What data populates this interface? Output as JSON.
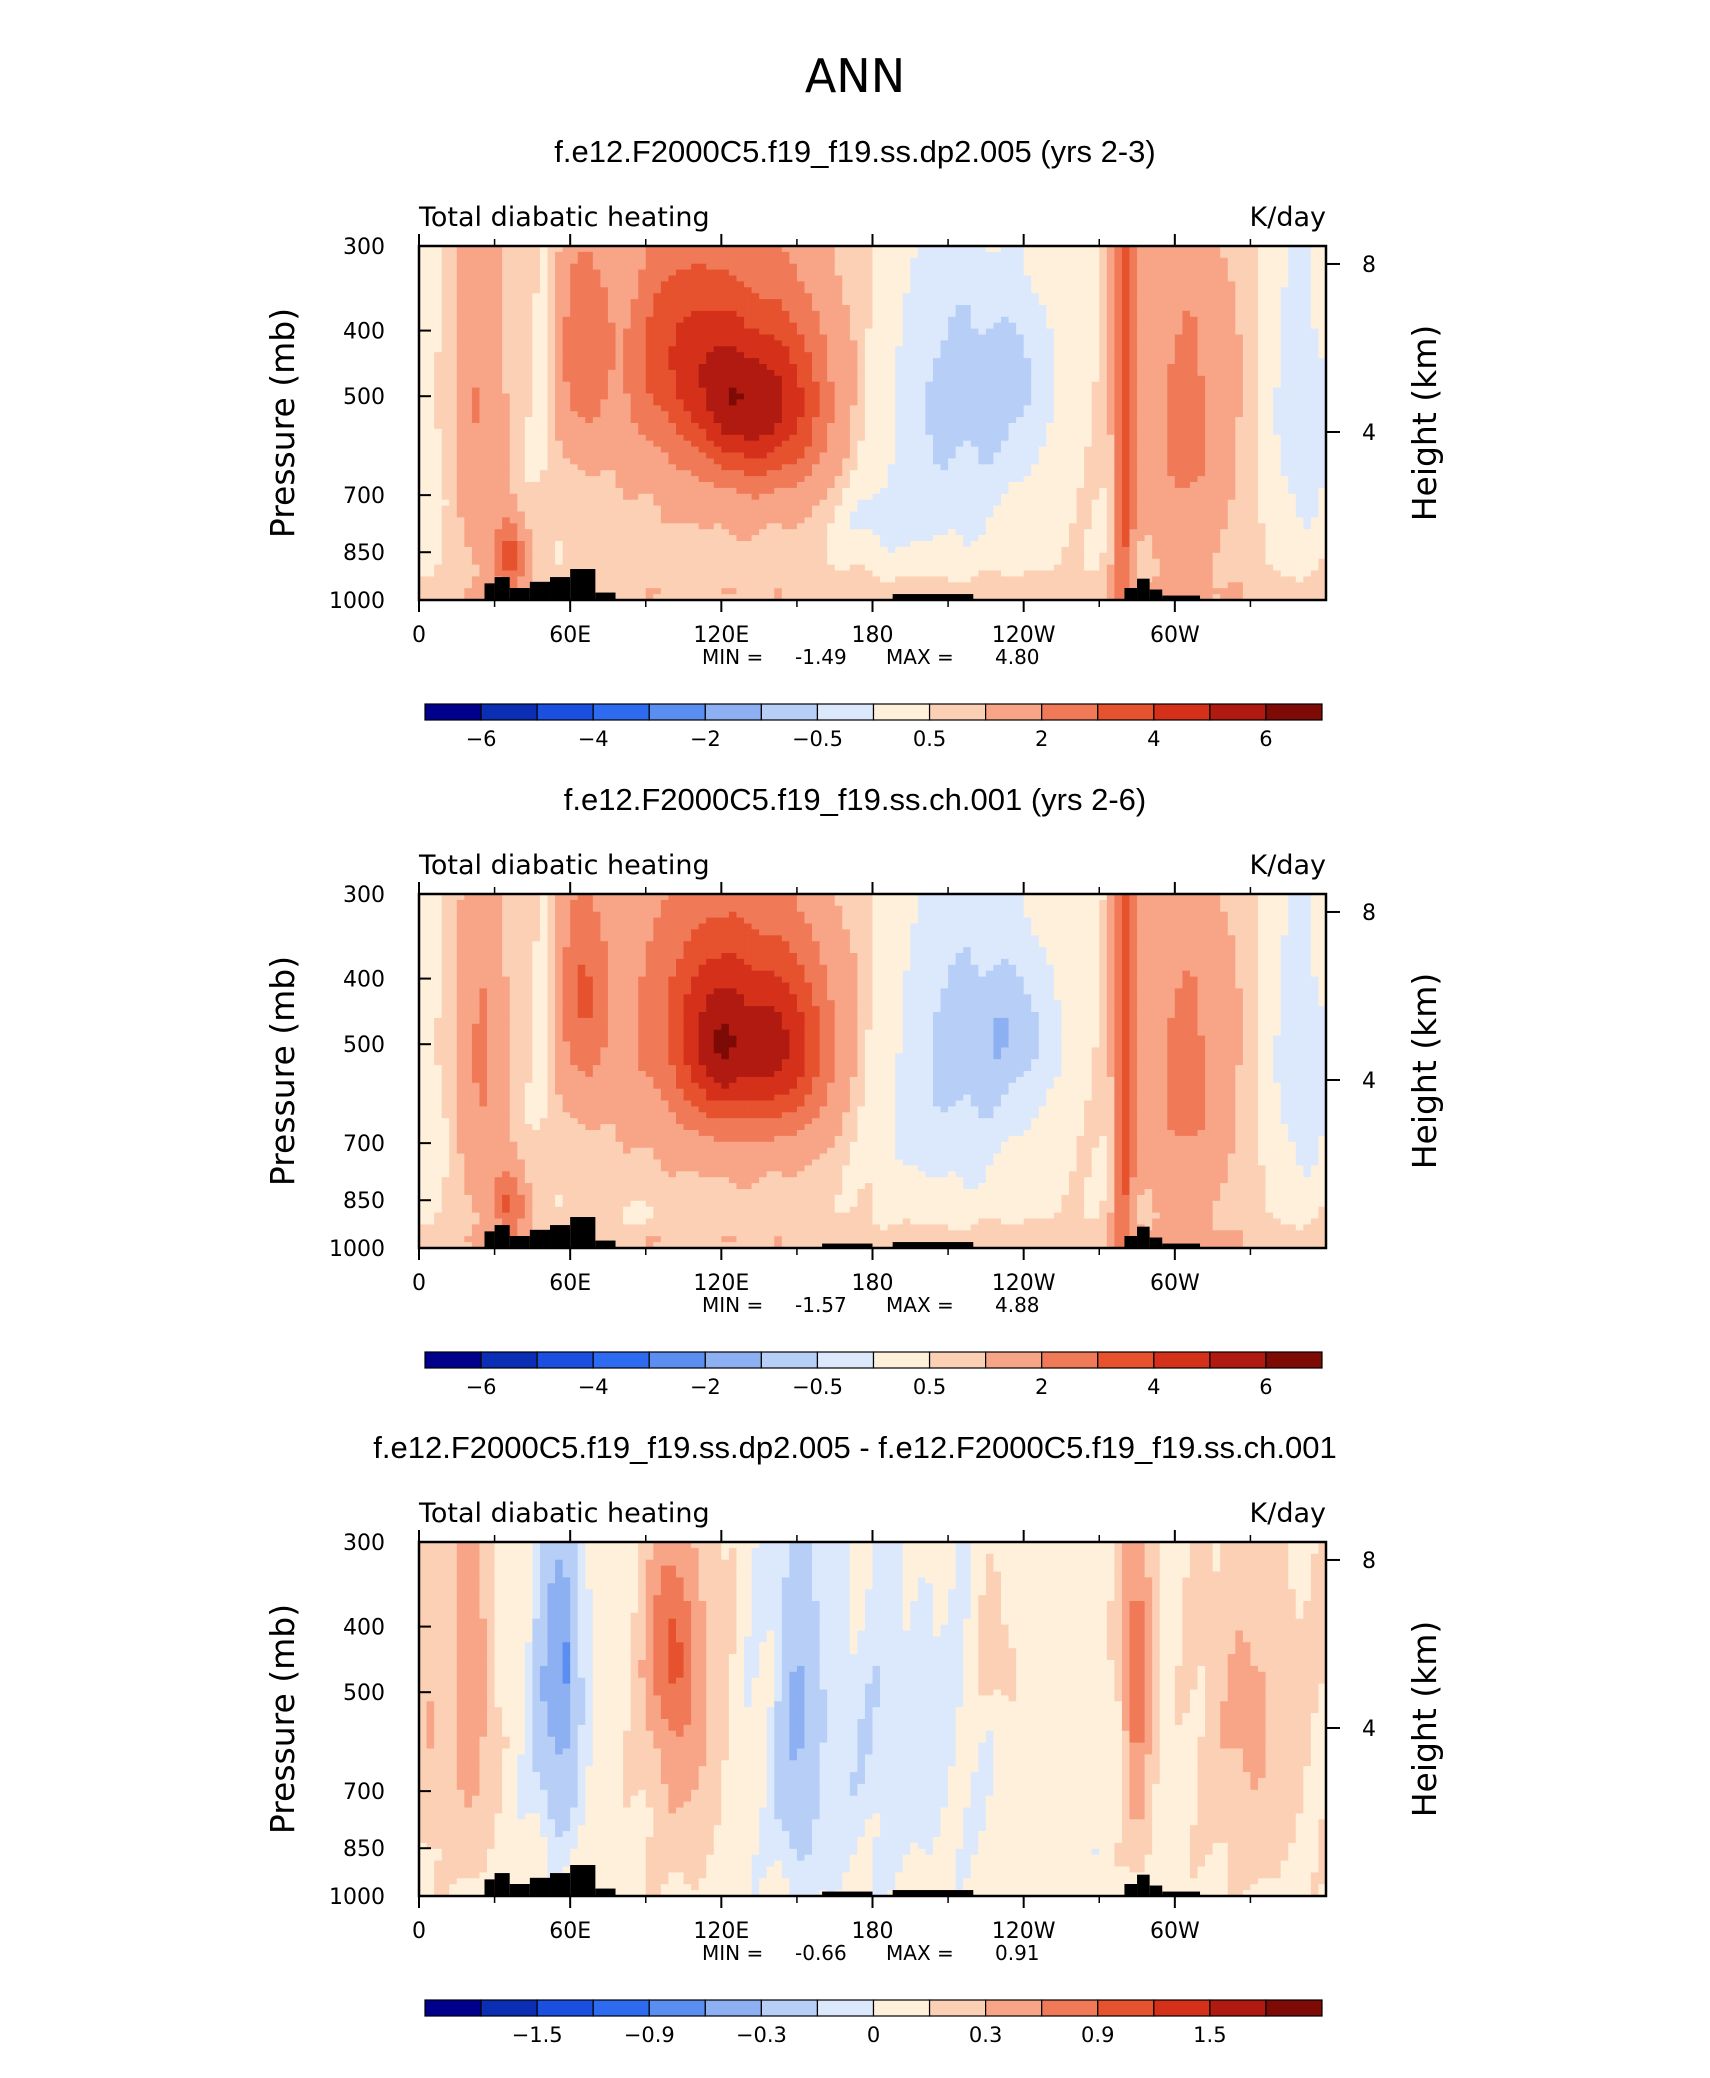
{
  "figure_title": "ANN",
  "colors": {
    "palette": [
      "#00008c",
      "#0a2fb5",
      "#1a4fe0",
      "#2f6bf0",
      "#5a8ef0",
      "#8cb0f2",
      "#b7cff6",
      "#dce9fc",
      "#fff0dc",
      "#fcd0b5",
      "#f8a486",
      "#f07a58",
      "#e6512e",
      "#d4301a",
      "#b01a10",
      "#7d0a05"
    ],
    "land": "#000000"
  },
  "chart_data": [
    {
      "type": "contour",
      "title": "f.e12.F2000C5.f19_f19.ss.dp2.005 (yrs 2-3)",
      "left_label": "Total diabatic heating",
      "right_label": "K/day",
      "ylabel": "Pressure (mb)",
      "ylabel_right": "Height (km)",
      "x_ticks": [
        "0",
        "60E",
        "120E",
        "180",
        "120W",
        "60W"
      ],
      "y_ticks": [
        "300",
        "400",
        "500",
        "700",
        "850",
        "1000"
      ],
      "y_right_ticks": [
        "8",
        "4"
      ],
      "xlim": [
        0,
        360
      ],
      "ylim": [
        1000,
        300
      ],
      "min_label": "MIN =",
      "min": "-1.49",
      "max_label": "MAX =",
      "max": "4.80",
      "colorbar_ticks": [
        "-6",
        "-4",
        "-2",
        "-0.5",
        "0.5",
        "2",
        "4",
        "6"
      ],
      "features": [
        {
          "lon": 105,
          "lev": 430,
          "wlon": 22,
          "wlev": 150,
          "amp": 2.2
        },
        {
          "lon": 125,
          "lev": 520,
          "wlon": 14,
          "wlev": 120,
          "amp": 2.2
        },
        {
          "lon": 145,
          "lev": 520,
          "wlon": 18,
          "wlev": 150,
          "amp": 2.6
        },
        {
          "lon": 125,
          "lev": 470,
          "wlon": 45,
          "wlev": 260,
          "amp": 1.9
        },
        {
          "lon": 65,
          "lev": 420,
          "wlon": 10,
          "wlev": 160,
          "amp": 2.0
        },
        {
          "lon": 24,
          "lev": 520,
          "wlon": 9,
          "wlev": 320,
          "amp": 1.5
        },
        {
          "lon": 36,
          "lev": 860,
          "wlon": 6,
          "wlev": 110,
          "amp": 3.0
        },
        {
          "lon": 210,
          "lev": 520,
          "wlon": 38,
          "wlev": 320,
          "amp": -1.2
        },
        {
          "lon": 237,
          "lev": 470,
          "wlon": 18,
          "wlev": 110,
          "amp": -0.6
        },
        {
          "lon": 180,
          "lev": 760,
          "wlon": 18,
          "wlev": 100,
          "amp": -0.5
        },
        {
          "lon": 280,
          "lev": 500,
          "wlon": 4,
          "wlev": 650,
          "amp": 3.0
        },
        {
          "lon": 305,
          "lev": 550,
          "wlon": 18,
          "wlev": 330,
          "amp": 1.8
        },
        {
          "lon": 350,
          "lev": 520,
          "wlon": 14,
          "wlev": 320,
          "amp": -0.9
        },
        {
          "lon": 50,
          "lev": 450,
          "wlon": 5,
          "wlev": 200,
          "amp": -0.5
        }
      ]
    },
    {
      "type": "contour",
      "title": "f.e12.F2000C5.f19_f19.ss.ch.001 (yrs 2-6)",
      "left_label": "Total diabatic heating",
      "right_label": "K/day",
      "ylabel": "Pressure (mb)",
      "ylabel_right": "Height (km)",
      "x_ticks": [
        "0",
        "60E",
        "120E",
        "180",
        "120W",
        "60W"
      ],
      "y_ticks": [
        "300",
        "400",
        "500",
        "700",
        "850",
        "1000"
      ],
      "y_right_ticks": [
        "8",
        "4"
      ],
      "xlim": [
        0,
        360
      ],
      "ylim": [
        1000,
        300
      ],
      "min_label": "MIN =",
      "min": "-1.57",
      "max_label": "MAX =",
      "max": "4.88",
      "colorbar_ticks": [
        "-6",
        "-4",
        "-2",
        "-0.5",
        "0.5",
        "2",
        "4",
        "6"
      ],
      "features": [
        {
          "lon": 115,
          "lev": 460,
          "wlon": 22,
          "wlev": 160,
          "amp": 2.0
        },
        {
          "lon": 120,
          "lev": 530,
          "wlon": 12,
          "wlev": 120,
          "amp": 1.6
        },
        {
          "lon": 145,
          "lev": 510,
          "wlon": 18,
          "wlev": 150,
          "amp": 2.8
        },
        {
          "lon": 125,
          "lev": 470,
          "wlon": 48,
          "wlev": 260,
          "amp": 1.9
        },
        {
          "lon": 65,
          "lev": 420,
          "wlon": 10,
          "wlev": 160,
          "amp": 2.2
        },
        {
          "lon": 25,
          "lev": 520,
          "wlon": 9,
          "wlev": 320,
          "amp": 1.6
        },
        {
          "lon": 36,
          "lev": 860,
          "wlon": 6,
          "wlev": 110,
          "amp": 2.6
        },
        {
          "lon": 210,
          "lev": 520,
          "wlon": 38,
          "wlev": 320,
          "amp": -1.2
        },
        {
          "lon": 237,
          "lev": 480,
          "wlon": 20,
          "wlev": 120,
          "amp": -0.7
        },
        {
          "lon": 280,
          "lev": 500,
          "wlon": 4,
          "wlev": 650,
          "amp": 3.0
        },
        {
          "lon": 305,
          "lev": 560,
          "wlon": 18,
          "wlev": 330,
          "amp": 1.8
        },
        {
          "lon": 350,
          "lev": 520,
          "wlon": 14,
          "wlev": 320,
          "amp": -0.9
        },
        {
          "lon": 50,
          "lev": 450,
          "wlon": 5,
          "wlev": 200,
          "amp": -0.6
        },
        {
          "lon": 88,
          "lev": 900,
          "wlon": 6,
          "wlev": 40,
          "amp": -0.4
        }
      ]
    },
    {
      "type": "contour",
      "title": "f.e12.F2000C5.f19_f19.ss.dp2.005 - f.e12.F2000C5.f19_f19.ss.ch.001",
      "left_label": "Total diabatic heating",
      "right_label": "K/day",
      "ylabel": "Pressure (mb)",
      "ylabel_right": "Height (km)",
      "x_ticks": [
        "0",
        "60E",
        "120E",
        "180",
        "120W",
        "60W"
      ],
      "y_ticks": [
        "300",
        "400",
        "500",
        "700",
        "850",
        "1000"
      ],
      "y_right_ticks": [
        "8",
        "4"
      ],
      "xlim": [
        0,
        360
      ],
      "ylim": [
        1000,
        300
      ],
      "min_label": "MIN =",
      "min": "-0.66",
      "max_label": "MAX =",
      "max": "0.91",
      "colorbar_ticks": [
        "-1.5",
        "-0.9",
        "-0.3",
        "0",
        "0.3",
        "0.9",
        "1.5"
      ],
      "features": [
        {
          "lon": 20,
          "lev": 500,
          "wlon": 8,
          "wlev": 300,
          "amp": 0.45
        },
        {
          "lon": 55,
          "lev": 500,
          "wlon": 9,
          "wlev": 280,
          "amp": -0.45
        },
        {
          "lon": 58,
          "lev": 450,
          "wlon": 3,
          "wlev": 90,
          "amp": -0.35
        },
        {
          "lon": 100,
          "lev": 430,
          "wlon": 9,
          "wlev": 140,
          "amp": 0.7
        },
        {
          "lon": 105,
          "lev": 560,
          "wlon": 14,
          "wlev": 300,
          "amp": 0.35
        },
        {
          "lon": 150,
          "lev": 550,
          "wlon": 8,
          "wlev": 350,
          "amp": -0.3
        },
        {
          "lon": 180,
          "lev": 600,
          "wlon": 40,
          "wlev": 350,
          "amp": -0.12
        },
        {
          "lon": 230,
          "lev": 450,
          "wlon": 8,
          "wlev": 100,
          "amp": 0.15
        },
        {
          "lon": 285,
          "lev": 470,
          "wlon": 5,
          "wlev": 300,
          "amp": 0.7
        },
        {
          "lon": 330,
          "lev": 560,
          "wlon": 18,
          "wlev": 300,
          "amp": 0.3
        },
        {
          "lon": 5,
          "lev": 500,
          "wlon": 5,
          "wlev": 400,
          "amp": 0.2
        }
      ]
    }
  ]
}
